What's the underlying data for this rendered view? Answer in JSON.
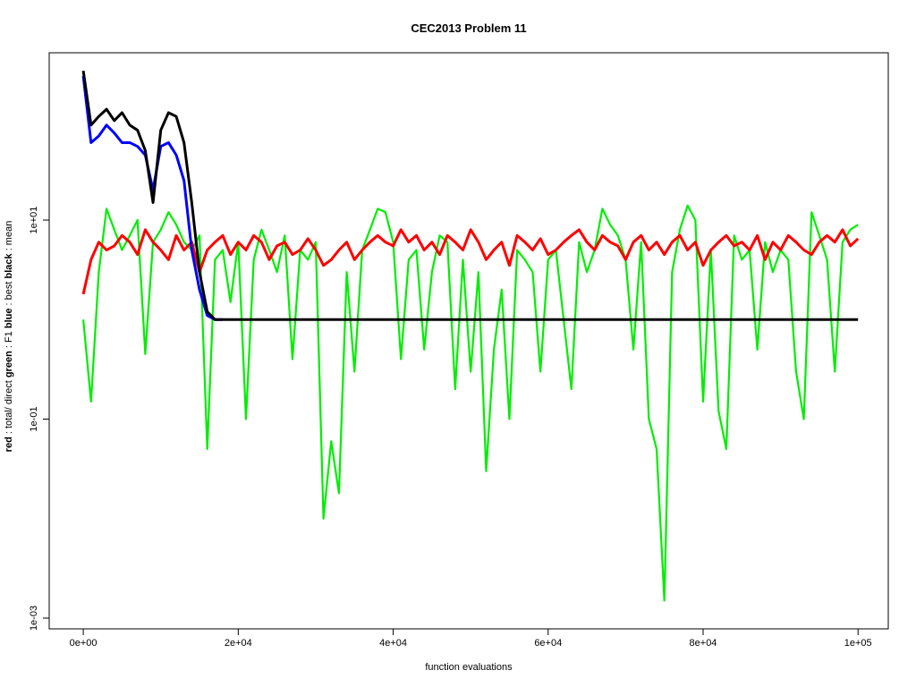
{
  "chart_data": {
    "type": "line",
    "title": "CEC2013 Problem  11",
    "xlabel": "function evaluations",
    "ylabel_parts": [
      {
        "text": "red",
        "bold": true
      },
      {
        "text": " : total/ direct ",
        "bold": false
      },
      {
        "text": "green",
        "bold": true
      },
      {
        "text": " : F1 ",
        "bold": false
      },
      {
        "text": "blue",
        "bold": true
      },
      {
        "text": " : best ",
        "bold": false
      },
      {
        "text": "black",
        "bold": true
      },
      {
        "text": " : mean",
        "bold": false
      }
    ],
    "log_y": true,
    "xlim": [
      -4400,
      103900
    ],
    "ylim": [
      0.00078,
      480
    ],
    "xticks": [
      {
        "value": 0,
        "label": "0e+00"
      },
      {
        "value": 20000,
        "label": "2e+04"
      },
      {
        "value": 40000,
        "label": "4e+04"
      },
      {
        "value": 60000,
        "label": "6e+04"
      },
      {
        "value": 80000,
        "label": "8e+04"
      },
      {
        "value": 100000,
        "label": "1e+05"
      }
    ],
    "yticks": [
      {
        "value": 0.001,
        "label": "1e-03"
      },
      {
        "value": 0.1,
        "label": "1e-01"
      },
      {
        "value": 10,
        "label": "1e+01"
      }
    ],
    "x": [
      0,
      1000,
      2000,
      3000,
      4000,
      5000,
      6000,
      7000,
      8000,
      9000,
      10000,
      11000,
      12000,
      13000,
      14000,
      15000,
      16000,
      17000,
      18000,
      19000,
      20000,
      21000,
      22000,
      23000,
      24000,
      25000,
      26000,
      27000,
      28000,
      29000,
      30000,
      31000,
      32000,
      33000,
      34000,
      35000,
      36000,
      37000,
      38000,
      39000,
      40000,
      41000,
      42000,
      43000,
      44000,
      45000,
      46000,
      47000,
      48000,
      49000,
      50000,
      51000,
      52000,
      53000,
      54000,
      55000,
      56000,
      57000,
      58000,
      59000,
      60000,
      61000,
      62000,
      63000,
      64000,
      65000,
      66000,
      67000,
      68000,
      69000,
      70000,
      71000,
      72000,
      73000,
      74000,
      75000,
      76000,
      77000,
      78000,
      79000,
      80000,
      81000,
      82000,
      83000,
      84000,
      85000,
      86000,
      87000,
      88000,
      89000,
      90000,
      91000,
      92000,
      93000,
      94000,
      95000,
      96000,
      97000,
      98000,
      99000,
      100000
    ],
    "series": [
      {
        "name": "green",
        "color": "#00ee00",
        "width": 2.2,
        "values": [
          1.0,
          0.15,
          3,
          13,
          8,
          5,
          7,
          10,
          0.45,
          6,
          8,
          12,
          9,
          6,
          5,
          7,
          0.05,
          4,
          5,
          1.5,
          6,
          0.1,
          4,
          8,
          5,
          3,
          7,
          0.4,
          5,
          4,
          6,
          0.01,
          0.06,
          0.018,
          3,
          0.3,
          5,
          8,
          13,
          12,
          6,
          0.4,
          4,
          5,
          0.5,
          3,
          7,
          6,
          0.2,
          4,
          0.3,
          3,
          0.03,
          0.5,
          2,
          0.1,
          5,
          4,
          3,
          0.3,
          4,
          5,
          1,
          0.2,
          6,
          3,
          5,
          13,
          9,
          7,
          4,
          0.5,
          6,
          0.1,
          0.05,
          0.0015,
          3,
          8,
          14,
          10,
          0.15,
          5,
          0.12,
          0.05,
          7,
          4,
          5,
          0.5,
          6,
          3,
          5,
          4,
          0.3,
          0.1,
          12,
          7,
          4,
          0.3,
          6,
          8,
          9
        ]
      },
      {
        "name": "red",
        "color": "#ff0000",
        "width": 3,
        "values": [
          1.8,
          4,
          6,
          5,
          5.5,
          7,
          6,
          4.5,
          8,
          6,
          5,
          4,
          7,
          5,
          6,
          3,
          5,
          6,
          7,
          4.5,
          6,
          5,
          7,
          6,
          4,
          5.5,
          6,
          4.5,
          5,
          6.5,
          5,
          3.5,
          4,
          5,
          6,
          4,
          5,
          6,
          7,
          6,
          5.5,
          8,
          6,
          7,
          5,
          6,
          4.5,
          7,
          6,
          5,
          8,
          6,
          4,
          5,
          6,
          3.5,
          7,
          6,
          5,
          6.5,
          4.5,
          5,
          6,
          7,
          8,
          6,
          5,
          7,
          6,
          5.5,
          4,
          6,
          7,
          5,
          6,
          4.5,
          6,
          7,
          5,
          6,
          3.5,
          5,
          6,
          7,
          5.5,
          6,
          5,
          7,
          4,
          6,
          5,
          7,
          6,
          5,
          4.5,
          6,
          7,
          6,
          8,
          5.5,
          6.5
        ]
      },
      {
        "name": "blue",
        "color": "#0000ff",
        "width": 3,
        "values": [
          280,
          60,
          70,
          90,
          75,
          60,
          60,
          55,
          45,
          20,
          55,
          60,
          45,
          25,
          5,
          2,
          1.1,
          1.0,
          1.0,
          null,
          null,
          null,
          null,
          null,
          null,
          null,
          null,
          null,
          null,
          null,
          null,
          null,
          null,
          null,
          null,
          null,
          null,
          null,
          null,
          null,
          null,
          null,
          null,
          null,
          null,
          null,
          null,
          null,
          null,
          null,
          null,
          null,
          null,
          null,
          null,
          null,
          null,
          null,
          null,
          null,
          null,
          null,
          null,
          null,
          null,
          null,
          null,
          null,
          null,
          null,
          null,
          null,
          null,
          null,
          null,
          null,
          null,
          null,
          null,
          null,
          null,
          null,
          null,
          null,
          null,
          null,
          null,
          null,
          null,
          null,
          null,
          null,
          null,
          null,
          null,
          null,
          null,
          null,
          null,
          null,
          null
        ]
      },
      {
        "name": "black",
        "color": "#000000",
        "width": 3,
        "values": [
          316,
          90,
          110,
          130,
          100,
          120,
          90,
          80,
          50,
          15,
          80,
          120,
          110,
          60,
          15,
          3,
          1.2,
          1.0,
          1.0,
          1.0,
          1.0,
          1.0,
          1.0,
          1.0,
          1.0,
          1.0,
          1.0,
          1.0,
          1.0,
          1.0,
          1.0,
          1.0,
          1.0,
          1.0,
          1.0,
          1.0,
          1.0,
          1.0,
          1.0,
          1.0,
          1.0,
          1.0,
          1.0,
          1.0,
          1.0,
          1.0,
          1.0,
          1.0,
          1.0,
          1.0,
          1.0,
          1.0,
          1.0,
          1.0,
          1.0,
          1.0,
          1.0,
          1.0,
          1.0,
          1.0,
          1.0,
          1.0,
          1.0,
          1.0,
          1.0,
          1.0,
          1.0,
          1.0,
          1.0,
          1.0,
          1.0,
          1.0,
          1.0,
          1.0,
          1.0,
          1.0,
          1.0,
          1.0,
          1.0,
          1.0,
          1.0,
          1.0,
          1.0,
          1.0,
          1.0,
          1.0,
          1.0,
          1.0,
          1.0,
          1.0,
          1.0,
          1.0,
          1.0,
          1.0,
          1.0,
          1.0,
          1.0,
          1.0,
          1.0,
          1.0,
          1.0
        ]
      }
    ]
  }
}
